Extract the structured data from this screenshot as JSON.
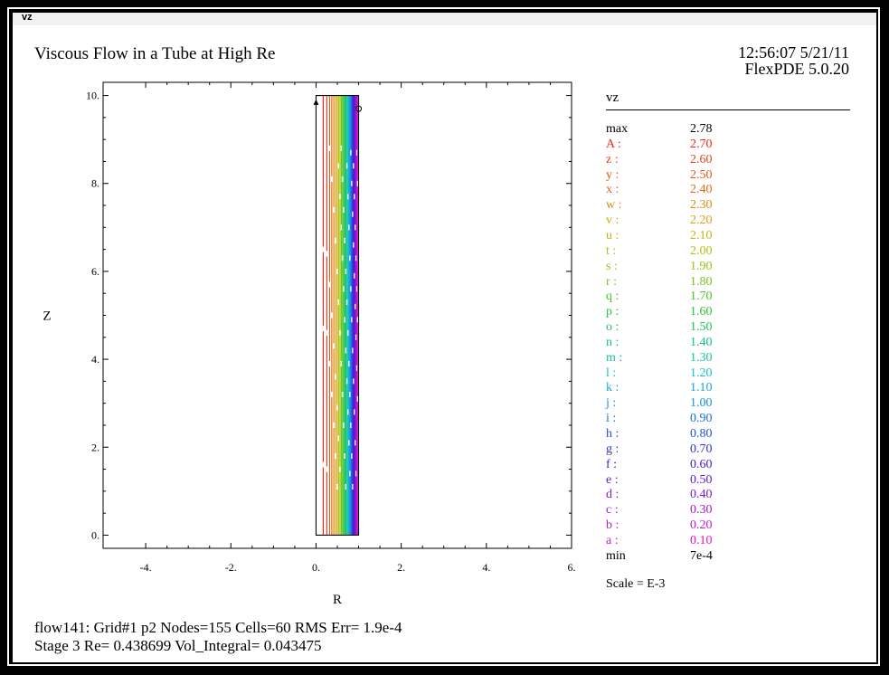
{
  "window": {
    "label": "vz"
  },
  "header": {
    "title": "Viscous Flow in a Tube at High Re",
    "timestamp": "12:56:07  5/21/11",
    "version": "FlexPDE 5.0.20"
  },
  "chart_data": {
    "type": "contour",
    "variable": "vz",
    "xlabel": "R",
    "ylabel": "Z",
    "xlim": [
      -5,
      6
    ],
    "ylim": [
      -0.3,
      10.3
    ],
    "x_ticks": [
      -4,
      -2,
      0,
      2,
      4,
      6
    ],
    "x_tick_labels": [
      "-4.",
      "-2.",
      "0.",
      "2.",
      "4.",
      "6."
    ],
    "y_ticks": [
      0,
      2,
      4,
      6,
      8,
      10
    ],
    "y_tick_labels": [
      "0.",
      "2.",
      "4.",
      "6.",
      "8.",
      "10."
    ],
    "domain": {
      "r": [
        0,
        1
      ],
      "z": [
        0,
        10
      ]
    },
    "max": "2.78",
    "min": "7e-4",
    "levels": [
      {
        "label": "A",
        "value": "2.70",
        "color": "#e8281e"
      },
      {
        "label": "z",
        "value": "2.60",
        "color": "#e8401e"
      },
      {
        "label": "y",
        "value": "2.50",
        "color": "#e35a1a"
      },
      {
        "label": "x",
        "value": "2.40",
        "color": "#e06a18"
      },
      {
        "label": "w",
        "value": "2.30",
        "color": "#dd8a14"
      },
      {
        "label": "v",
        "value": "2.20",
        "color": "#d8a214"
      },
      {
        "label": "u",
        "value": "2.10",
        "color": "#cdb014"
      },
      {
        "label": "t",
        "value": "2.00",
        "color": "#b8bc14"
      },
      {
        "label": "s",
        "value": "1.90",
        "color": "#98c414"
      },
      {
        "label": "r",
        "value": "1.80",
        "color": "#74c41c"
      },
      {
        "label": "q",
        "value": "1.70",
        "color": "#4cc428"
      },
      {
        "label": "p",
        "value": "1.60",
        "color": "#2cc438"
      },
      {
        "label": "o",
        "value": "1.50",
        "color": "#1cc458"
      },
      {
        "label": "n",
        "value": "1.40",
        "color": "#14c47c"
      },
      {
        "label": "m",
        "value": "1.30",
        "color": "#14c4a0"
      },
      {
        "label": "l",
        "value": "1.20",
        "color": "#14c0c0"
      },
      {
        "label": "k",
        "value": "1.10",
        "color": "#14a8d8"
      },
      {
        "label": "j",
        "value": "1.00",
        "color": "#1890e0"
      },
      {
        "label": "i",
        "value": "0.90",
        "color": "#1c6ce0"
      },
      {
        "label": "h",
        "value": "0.80",
        "color": "#2050e0"
      },
      {
        "label": "g",
        "value": "0.70",
        "color": "#3030d8"
      },
      {
        "label": "f",
        "value": "0.60",
        "color": "#4418cc"
      },
      {
        "label": "e",
        "value": "0.50",
        "color": "#6418d0"
      },
      {
        "label": "d",
        "value": "0.40",
        "color": "#8018d0"
      },
      {
        "label": "c",
        "value": "0.30",
        "color": "#a018d0"
      },
      {
        "label": "b",
        "value": "0.20",
        "color": "#c018d0"
      },
      {
        "label": "a",
        "value": "0.10",
        "color": "#d818c8"
      }
    ]
  },
  "legend": {
    "max_label": "max",
    "min_label": "min",
    "scale": "Scale = E-3"
  },
  "footer": {
    "line1": "flow141:  Grid#1  p2  Nodes=155 Cells=60 RMS Err= 1.9e-4",
    "line2": "Stage 3   Re=  0.438699  Vol_Integral=  0.043475"
  }
}
